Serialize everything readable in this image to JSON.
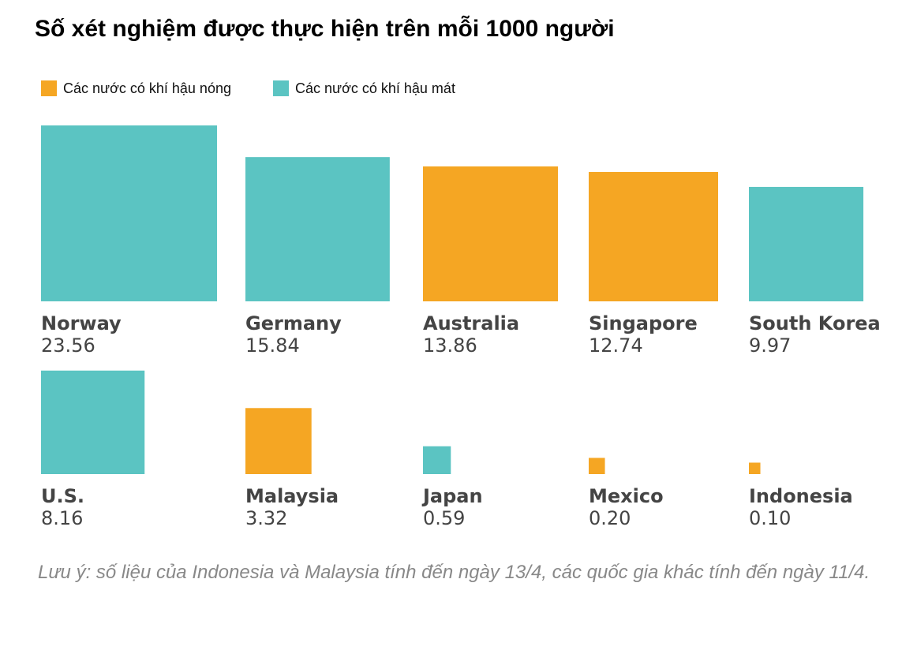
{
  "title": "Số xét nghiệm được thực hiện trên mỗi 1000 người",
  "legend": [
    {
      "label": "Các nước có khí hậu nóng",
      "color": "#F5A623"
    },
    {
      "label": "Các nước có khí hậu mát",
      "color": "#5BC4C2"
    }
  ],
  "note": "Lưu ý: số liệu của Indonesia và Malaysia tính đến ngày 13/4, các quốc gia khác tính đến ngày 11/4.",
  "chart_data": {
    "type": "bar",
    "title": "Số xét nghiệm được thực hiện trên mỗi 1000 người",
    "categories": [
      "Norway",
      "Germany",
      "Australia",
      "Singapore",
      "South Korea",
      "U.S.",
      "Malaysia",
      "Japan",
      "Mexico",
      "Indonesia"
    ],
    "values": [
      23.56,
      15.84,
      13.86,
      12.74,
      9.97,
      8.16,
      3.32,
      0.59,
      0.2,
      0.1
    ],
    "value_labels": [
      "23.56",
      "15.84",
      "13.86",
      "12.74",
      "9.97",
      "8.16",
      "3.32",
      "0.59",
      "0.20",
      "0.10"
    ],
    "climate": [
      "cool",
      "cool",
      "hot",
      "hot",
      "cool",
      "cool",
      "hot",
      "cool",
      "hot",
      "hot"
    ],
    "colors": {
      "hot": "#F5A623",
      "cool": "#5BC4C2"
    },
    "encoding": "square area proportional to value",
    "layout": "two rows of five"
  }
}
